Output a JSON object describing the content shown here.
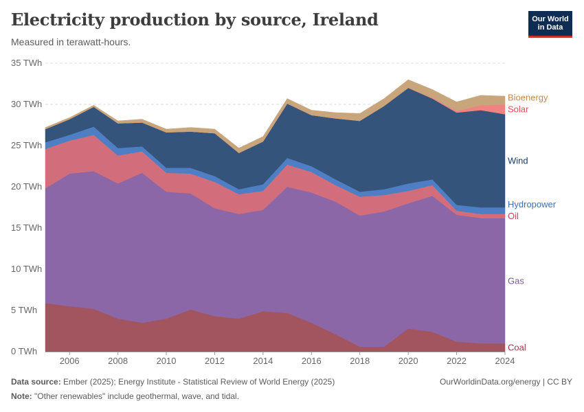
{
  "title": "Electricity production by source, Ireland",
  "subtitle": "Measured in terawatt-hours.",
  "logo": {
    "line1": "Our World",
    "line2": "in Data"
  },
  "footer": {
    "source_label": "Data source:",
    "source_text": "Ember (2025); Energy Institute - Statistical Review of World Energy (2025)",
    "note_label": "Note:",
    "note_text": "\"Other renewables\" include geothermal, wave, and tidal.",
    "url": "OurWorldinData.org/energy | CC BY"
  },
  "chart_data": {
    "type": "area",
    "stacked": true,
    "x": [
      2005,
      2006,
      2007,
      2008,
      2009,
      2010,
      2011,
      2012,
      2013,
      2014,
      2015,
      2016,
      2017,
      2018,
      2019,
      2020,
      2021,
      2022,
      2023,
      2024
    ],
    "xticks": [
      2006,
      2008,
      2010,
      2012,
      2014,
      2016,
      2018,
      2020,
      2022,
      2024
    ],
    "ylim": [
      0,
      35
    ],
    "yticks": [
      0,
      5,
      10,
      15,
      20,
      25,
      30,
      35
    ],
    "ytick_labels": [
      "0 TWh",
      "5 TWh",
      "10 TWh",
      "15 TWh",
      "20 TWh",
      "25 TWh",
      "30 TWh",
      "35 TWh"
    ],
    "grid": true,
    "legend": "right-inline",
    "series": [
      {
        "name": "Coal",
        "color": "#a2555f",
        "label_color": "#9a3c4a",
        "values": [
          5.9,
          5.5,
          5.2,
          4.0,
          3.5,
          4.0,
          5.1,
          4.3,
          4.0,
          4.9,
          4.7,
          3.5,
          2.1,
          0.6,
          0.6,
          2.8,
          2.4,
          1.2,
          1.0,
          1.0
        ]
      },
      {
        "name": "Gas",
        "color": "#8c67a8",
        "label_color": "#7f5a9e",
        "values": [
          13.9,
          16.1,
          16.7,
          16.4,
          18.2,
          15.4,
          14.1,
          13.1,
          12.7,
          12.3,
          15.3,
          15.8,
          16.1,
          15.9,
          16.4,
          15.2,
          16.5,
          15.4,
          15.2,
          15.2
        ]
      },
      {
        "name": "Oil",
        "color": "#d26d7c",
        "label_color": "#c5475c",
        "values": [
          4.8,
          4.0,
          4.4,
          3.4,
          2.6,
          2.3,
          2.4,
          3.2,
          2.4,
          2.3,
          2.7,
          2.5,
          2.0,
          2.3,
          2.0,
          1.5,
          1.3,
          0.5,
          0.5,
          0.5
        ]
      },
      {
        "name": "Hydropower",
        "color": "#4e7ec3",
        "label_color": "#3c6fb4",
        "values": [
          0.8,
          0.7,
          1.0,
          0.9,
          0.6,
          0.6,
          0.7,
          0.7,
          0.6,
          0.8,
          0.8,
          0.7,
          0.7,
          0.6,
          0.7,
          0.9,
          0.7,
          0.7,
          0.8,
          0.8
        ]
      },
      {
        "name": "Wind",
        "color": "#34547c",
        "label_color": "#183a61",
        "values": [
          1.6,
          1.9,
          2.4,
          3.0,
          2.9,
          4.3,
          4.4,
          5.2,
          4.4,
          5.2,
          6.6,
          6.2,
          7.4,
          8.6,
          10.1,
          11.6,
          9.8,
          11.2,
          11.8,
          11.3
        ]
      },
      {
        "name": "Solar",
        "color": "#f08282",
        "label_color": "#df4f58",
        "values": [
          0.0,
          0.0,
          0.0,
          0.0,
          0.0,
          0.0,
          0.0,
          0.0,
          0.0,
          0.0,
          0.0,
          0.0,
          0.0,
          0.0,
          0.0,
          0.0,
          0.1,
          0.2,
          0.6,
          1.2
        ]
      },
      {
        "name": "Bioenergy",
        "color": "#c9a57c",
        "label_color": "#c08a4a",
        "values": [
          0.2,
          0.2,
          0.2,
          0.3,
          0.4,
          0.4,
          0.5,
          0.5,
          0.6,
          0.6,
          0.6,
          0.6,
          0.7,
          0.9,
          0.9,
          1.0,
          1.0,
          1.1,
          1.2,
          1.0
        ]
      }
    ]
  }
}
